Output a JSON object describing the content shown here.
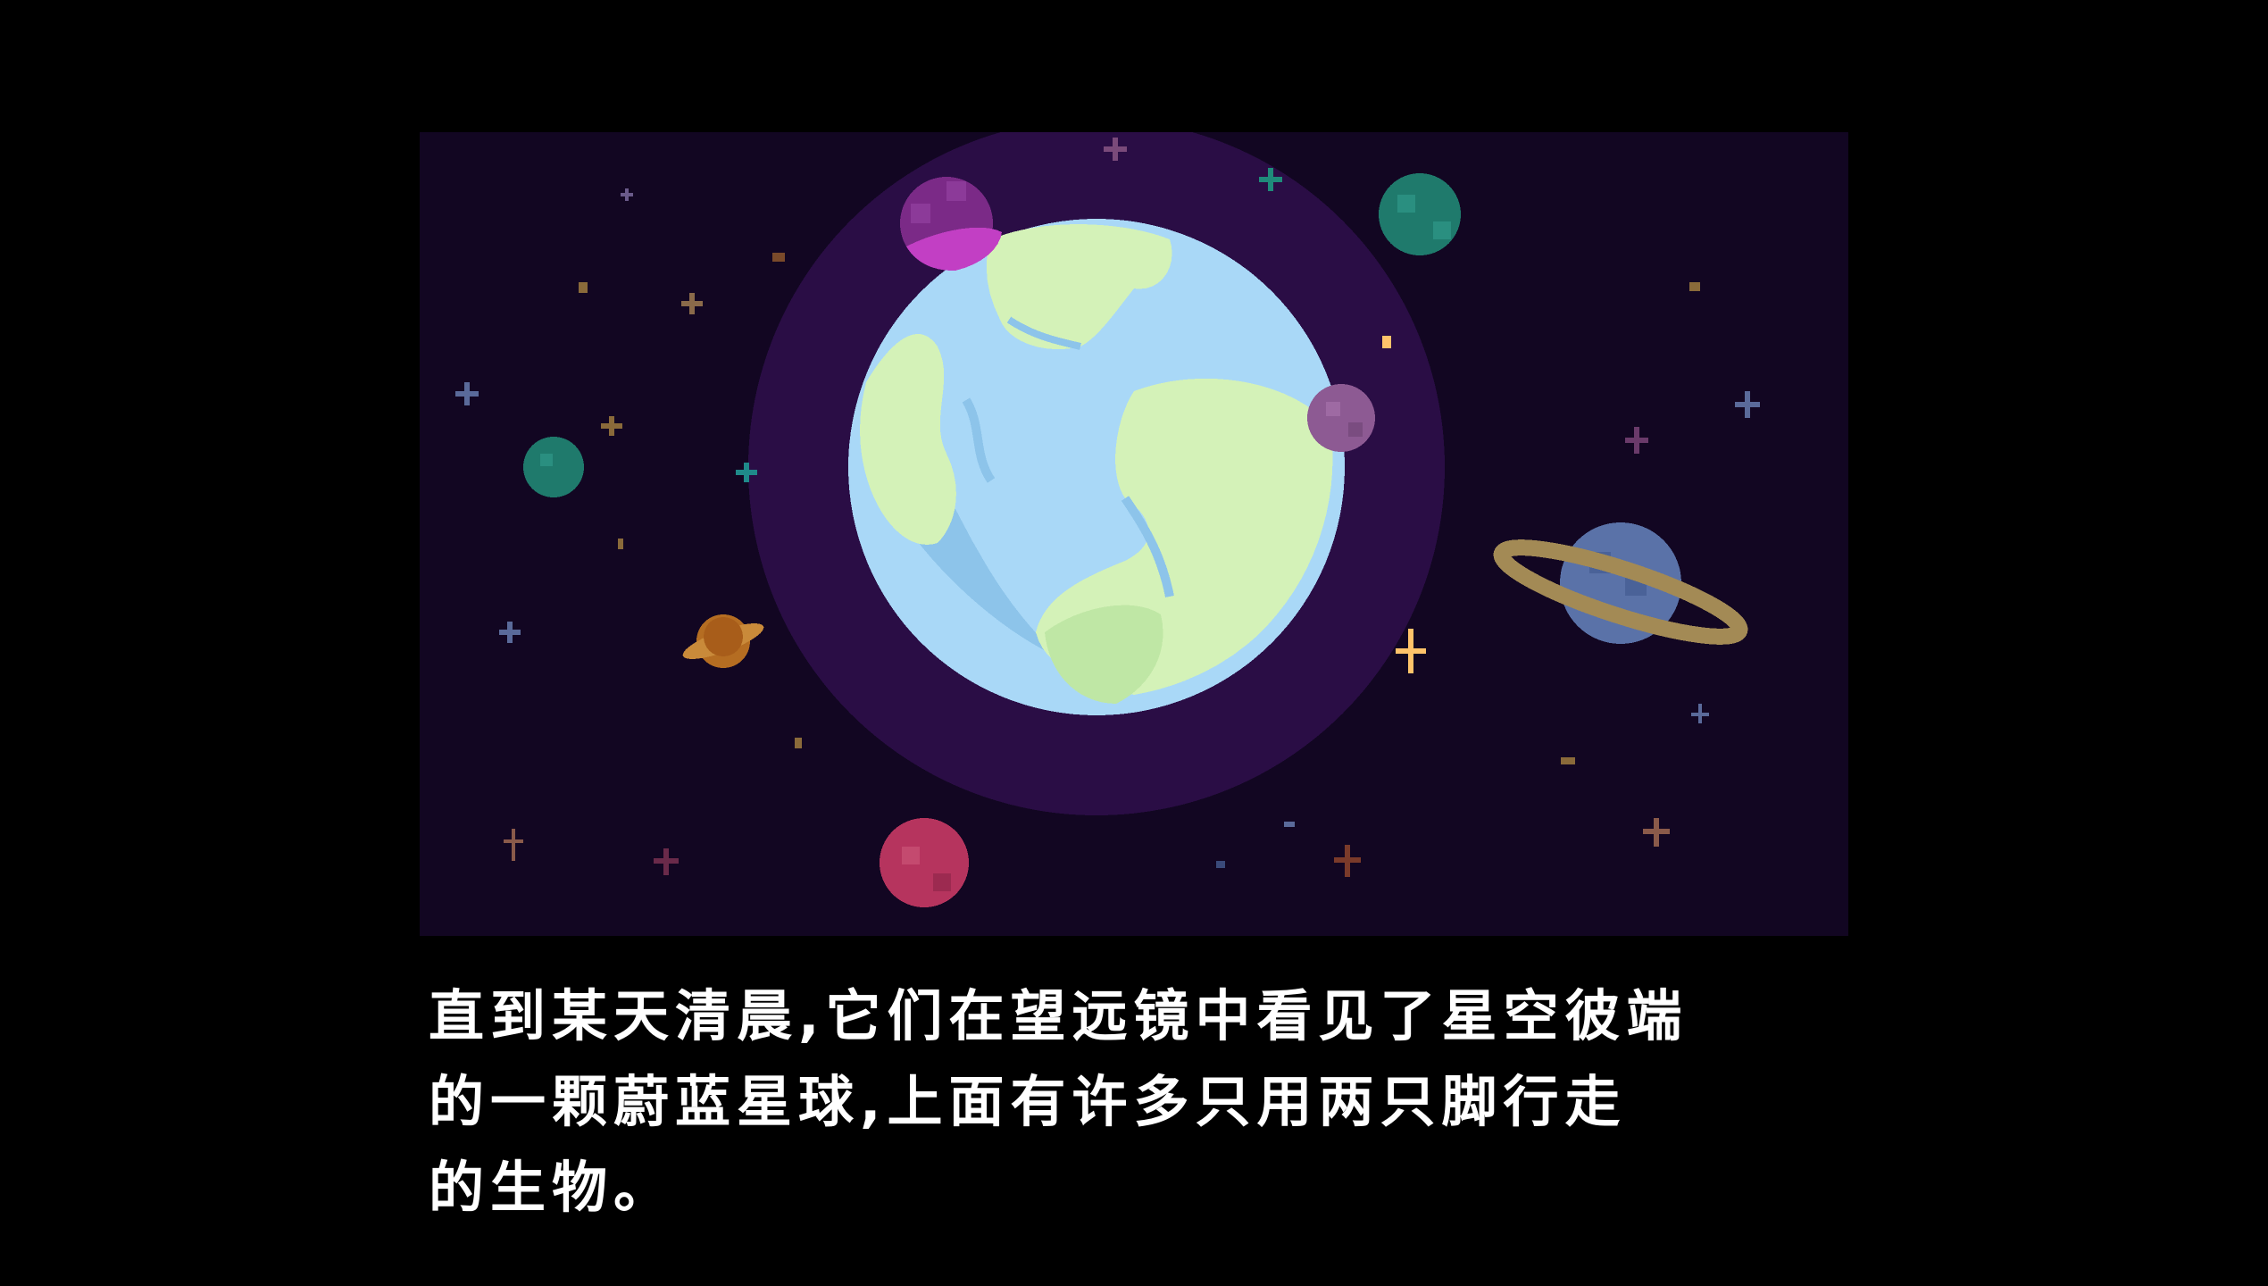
{
  "cutscene": {
    "illustration": {
      "background_color": "#120622",
      "halo_color": "#2a0d45",
      "earth_ocean_color": "#a9d8f7",
      "earth_land_color": "#d4f2b8",
      "icons": [
        "earth-icon",
        "planet-icon",
        "ringed-planet-icon",
        "star-icon"
      ]
    },
    "dialogue": {
      "lines": [
        "直到某天清晨,它们在望远镜中看见了星空彼端",
        "的一颗蔚蓝星球,上面有许多只用两只脚行走",
        "的生物。"
      ],
      "text_color": "#ffffff"
    }
  }
}
